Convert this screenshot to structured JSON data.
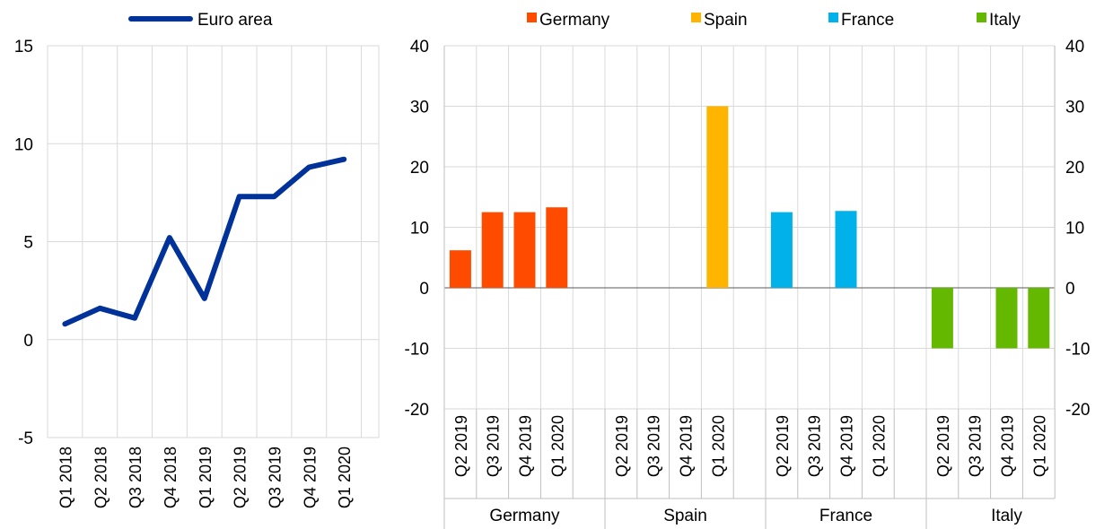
{
  "chart_data": [
    {
      "type": "line",
      "legend": "top",
      "grid": true,
      "ylim": [
        -5,
        15
      ],
      "yticks": [
        "15",
        "10",
        "5",
        "0",
        "-5"
      ],
      "x": [
        "Q1 2018",
        "Q2 2018",
        "Q3 2018",
        "Q4 2018",
        "Q1 2019",
        "Q2 2019",
        "Q3 2019",
        "Q4 2019",
        "Q1 2020"
      ],
      "series": [
        {
          "name": "Euro area",
          "color": "#003299",
          "values": [
            0.8,
            1.6,
            1.1,
            5.2,
            2.1,
            7.3,
            7.3,
            8.8,
            9.2
          ]
        }
      ]
    },
    {
      "type": "bar",
      "legend": "top",
      "grid": true,
      "ylim": [
        -20,
        40
      ],
      "yticks": [
        "40",
        "30",
        "20",
        "10",
        "0",
        "-10",
        "-20"
      ],
      "groups": [
        {
          "name": "Germany",
          "color": "#ff4b00",
          "categories": [
            "Q2 2019",
            "Q3 2019",
            "Q4 2019",
            "Q1 2020"
          ],
          "values": [
            6.2,
            12.5,
            12.5,
            13.3
          ]
        },
        {
          "name": "Spain",
          "color": "#ffb400",
          "categories": [
            "Q2 2019",
            "Q3 2019",
            "Q4 2019",
            "Q1 2020"
          ],
          "values": [
            0,
            0,
            0,
            30
          ]
        },
        {
          "name": "France",
          "color": "#00b1ea",
          "categories": [
            "Q2 2019",
            "Q3 2019",
            "Q4 2019",
            "Q1 2020"
          ],
          "values": [
            12.5,
            0,
            12.7,
            0
          ]
        },
        {
          "name": "Italy",
          "color": "#65b800",
          "categories": [
            "Q2 2019",
            "Q3 2019",
            "Q4 2019",
            "Q1 2020"
          ],
          "values": [
            -10,
            0,
            -10,
            -10
          ]
        }
      ]
    }
  ]
}
